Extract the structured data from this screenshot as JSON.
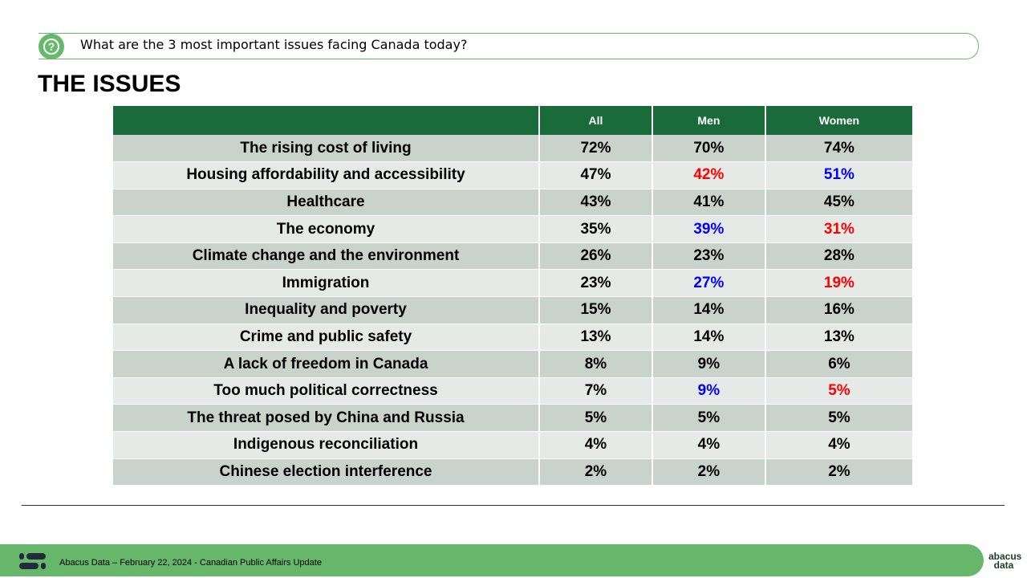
{
  "question": "What are the 3 most important issues facing Canada today?",
  "title": "THE ISSUES",
  "colors": {
    "header": "#1a6b3a",
    "higher": "#0000ff",
    "lower": "#ff0000",
    "accent": "#66b76a"
  },
  "table": {
    "columns": [
      "",
      "All",
      "Men",
      "Women"
    ],
    "rows": [
      {
        "label": "The rising cost of living",
        "all": "72%",
        "men": "70%",
        "women": "74%"
      },
      {
        "label": "Housing affordability and accessibility",
        "all": "47%",
        "men": "42%",
        "women": "51%",
        "men_color": "lower",
        "women_color": "higher"
      },
      {
        "label": "Healthcare",
        "all": "43%",
        "men": "41%",
        "women": "45%"
      },
      {
        "label": "The economy",
        "all": "35%",
        "men": "39%",
        "women": "31%",
        "men_color": "higher",
        "women_color": "lower"
      },
      {
        "label": "Climate change and the environment",
        "all": "26%",
        "men": "23%",
        "women": "28%"
      },
      {
        "label": "Immigration",
        "all": "23%",
        "men": "27%",
        "women": "19%",
        "men_color": "higher",
        "women_color": "lower"
      },
      {
        "label": "Inequality and poverty",
        "all": "15%",
        "men": "14%",
        "women": "16%"
      },
      {
        "label": "Crime and public safety",
        "all": "13%",
        "men": "14%",
        "women": "13%"
      },
      {
        "label": "A lack of freedom in Canada",
        "all": "8%",
        "men": "9%",
        "women": "6%"
      },
      {
        "label": "Too much political correctness",
        "all": "7%",
        "men": "9%",
        "women": "5%",
        "men_color": "higher",
        "women_color": "lower"
      },
      {
        "label": "The threat posed by China and Russia",
        "all": "5%",
        "men": "5%",
        "women": "5%"
      },
      {
        "label": "Indigenous reconciliation",
        "all": "4%",
        "men": "4%",
        "women": "4%"
      },
      {
        "label": "Chinese election interference",
        "all": "2%",
        "men": "2%",
        "women": "2%"
      }
    ]
  },
  "footer": {
    "text": "Abacus Data – February 22, 2024 - Canadian Public Affairs Update",
    "brand": "abacus data"
  }
}
